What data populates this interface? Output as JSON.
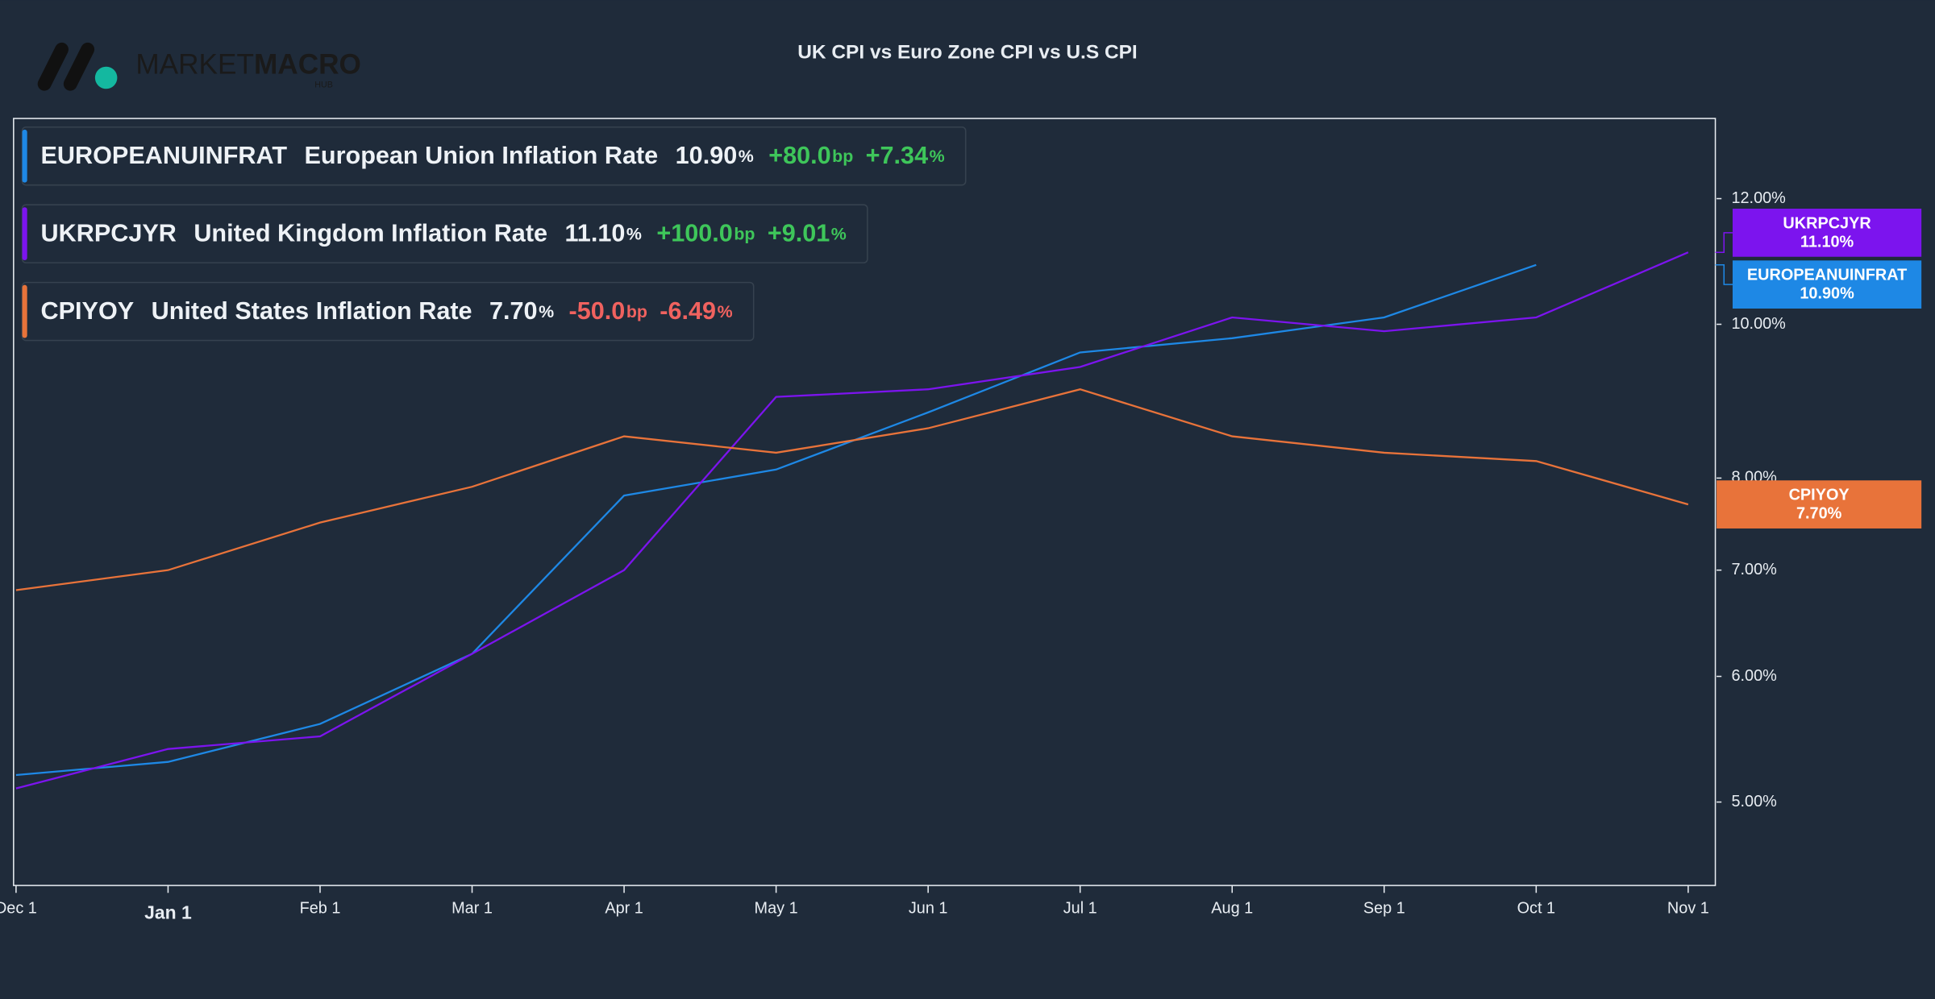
{
  "logo": {
    "light": "MARKET",
    "bold": "MACRO",
    "sub": "HUB"
  },
  "chart_data": {
    "type": "line",
    "title": "UK CPI vs Euro Zone CPI vs U.S CPI",
    "categories": [
      "Dec 1",
      "Jan 1",
      "Feb 1",
      "Mar 1",
      "Apr 1",
      "May 1",
      "Jun 1",
      "Jul 1",
      "Aug 1",
      "Sep 1",
      "Oct 1",
      "Nov 1"
    ],
    "bold_categories": [
      1
    ],
    "log_scale": true,
    "grid": false,
    "ylim": [
      4.43,
      13.48
    ],
    "yticks": [
      {
        "value": 5,
        "label": "5.00%"
      },
      {
        "value": 6,
        "label": "6.00%"
      },
      {
        "value": 7,
        "label": "7.00%"
      },
      {
        "value": 8,
        "label": "8.00%"
      },
      {
        "value": 10,
        "label": "10.00%"
      },
      {
        "value": 12,
        "label": "12.00%"
      }
    ],
    "series": [
      {
        "name": "EUROPEANUINFRAT",
        "description": "European Union Inflation Rate",
        "color": "#1e88e5",
        "values": [
          5.2,
          5.3,
          5.6,
          6.2,
          7.8,
          8.1,
          8.8,
          9.6,
          9.8,
          10.1,
          10.9,
          null
        ],
        "last": "10.90",
        "last_unit": "%",
        "change": "+80.0",
        "change_unit": "bp",
        "change_pct": "+7.34",
        "change_pct_unit": "%",
        "end_label": "10.90%"
      },
      {
        "name": "UKRPCJYR",
        "description": "United Kingdom Inflation Rate",
        "color": "#7c14ee",
        "values": [
          5.1,
          5.4,
          5.5,
          6.2,
          7.0,
          9.0,
          9.1,
          9.4,
          10.1,
          9.9,
          10.1,
          11.1
        ],
        "last": "11.10",
        "last_unit": "%",
        "change": "+100.0",
        "change_unit": "bp",
        "change_pct": "+9.01",
        "change_pct_unit": "%",
        "end_label": "11.10%"
      },
      {
        "name": "CPIYOY",
        "description": "United States Inflation Rate",
        "color": "#e8733a",
        "values": [
          6.8,
          7.0,
          7.5,
          7.9,
          8.5,
          8.3,
          8.6,
          9.1,
          8.5,
          8.3,
          8.2,
          7.7
        ],
        "last": "7.70",
        "last_unit": "%",
        "change": "-50.0",
        "change_unit": "bp",
        "change_pct": "-6.49",
        "change_pct_unit": "%",
        "end_label": "7.70%"
      }
    ]
  }
}
